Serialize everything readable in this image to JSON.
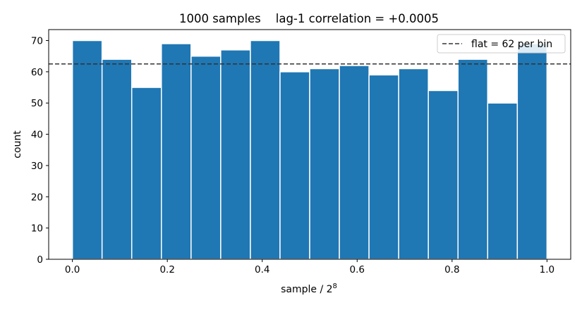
{
  "chart_data": {
    "type": "bar",
    "title": "1000 samples    lag-1 correlation = +0.0005",
    "xlabel_base": "sample / 2",
    "xlabel_exponent": "8",
    "ylabel": "count",
    "xlim": [
      -0.05,
      1.05
    ],
    "ylim": [
      0,
      73.5
    ],
    "xticks": [
      "0.0",
      "0.2",
      "0.4",
      "0.6",
      "0.8",
      "1.0"
    ],
    "xtick_values": [
      0.0,
      0.2,
      0.4,
      0.6,
      0.8,
      1.0
    ],
    "yticks": [
      "0",
      "10",
      "20",
      "30",
      "40",
      "50",
      "60",
      "70"
    ],
    "ytick_values": [
      0,
      10,
      20,
      30,
      40,
      50,
      60,
      70
    ],
    "bin_edges": [
      0.0,
      0.0625,
      0.125,
      0.1875,
      0.25,
      0.3125,
      0.375,
      0.4375,
      0.5,
      0.5625,
      0.625,
      0.6875,
      0.75,
      0.8125,
      0.875,
      0.9375,
      1.0
    ],
    "values": [
      70,
      64,
      55,
      69,
      65,
      67,
      70,
      60,
      61,
      62,
      59,
      61,
      54,
      64,
      50,
      69
    ],
    "reference_line": {
      "value": 62.5,
      "label": "flat = 62 per bin",
      "style": "dashed"
    },
    "legend_position": "top-right",
    "grid": false,
    "colors": {
      "bar": "#1f77b4",
      "bar_edge": "#ffffff",
      "reference": "#333333"
    }
  }
}
